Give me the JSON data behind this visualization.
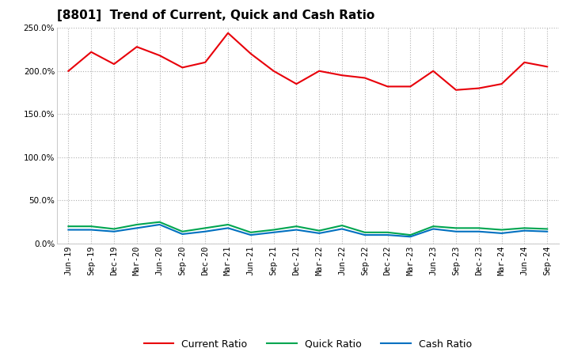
{
  "title": "[8801]  Trend of Current, Quick and Cash Ratio",
  "labels": [
    "Jun-19",
    "Sep-19",
    "Dec-19",
    "Mar-20",
    "Jun-20",
    "Sep-20",
    "Dec-20",
    "Mar-21",
    "Jun-21",
    "Sep-21",
    "Dec-21",
    "Mar-22",
    "Jun-22",
    "Sep-22",
    "Dec-22",
    "Mar-23",
    "Jun-23",
    "Sep-23",
    "Dec-23",
    "Mar-24",
    "Jun-24",
    "Sep-24"
  ],
  "current_ratio": [
    200.0,
    222.0,
    208.0,
    228.0,
    218.0,
    204.0,
    210.0,
    244.0,
    220.0,
    200.0,
    185.0,
    200.0,
    195.0,
    192.0,
    182.0,
    182.0,
    200.0,
    178.0,
    180.0,
    185.0,
    210.0,
    205.0
  ],
  "quick_ratio": [
    20.0,
    20.0,
    17.0,
    22.0,
    25.0,
    14.0,
    18.0,
    22.0,
    13.0,
    16.0,
    20.0,
    15.0,
    21.0,
    13.0,
    13.0,
    10.0,
    20.0,
    18.0,
    18.0,
    16.0,
    18.0,
    17.0
  ],
  "cash_ratio": [
    16.0,
    16.0,
    14.0,
    18.0,
    22.0,
    11.0,
    14.0,
    18.0,
    10.0,
    13.0,
    16.0,
    12.0,
    17.0,
    10.0,
    10.0,
    8.0,
    17.0,
    14.0,
    14.0,
    12.0,
    15.0,
    14.0
  ],
  "current_color": "#e8000a",
  "quick_color": "#00a550",
  "cash_color": "#0070c0",
  "background_color": "#ffffff",
  "grid_color": "#b0b0b0",
  "ylim": [
    0,
    250
  ],
  "yticks": [
    0.0,
    50.0,
    100.0,
    150.0,
    200.0,
    250.0
  ],
  "line_width": 1.5,
  "title_fontsize": 11,
  "legend_fontsize": 9,
  "tick_fontsize": 7.5
}
